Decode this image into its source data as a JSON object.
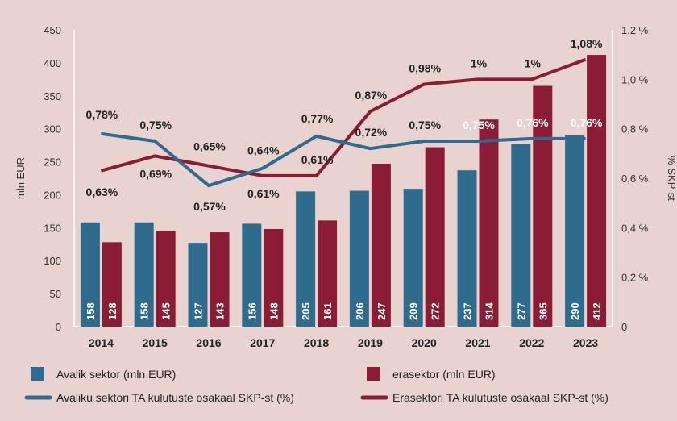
{
  "chart_data": {
    "type": "bar",
    "categories": [
      "2014",
      "2015",
      "2016",
      "2017",
      "2018",
      "2019",
      "2020",
      "2021",
      "2022",
      "2023"
    ],
    "ylabel": "mln EUR",
    "y2label": "% SKP-st",
    "ylim": [
      0,
      450
    ],
    "y2lim": [
      0,
      1.2
    ],
    "y_ticks": [
      "0",
      "50",
      "100",
      "150",
      "200",
      "250",
      "300",
      "350",
      "400",
      "450"
    ],
    "y2_ticks": [
      "0",
      "0,2 %",
      "0,4 %",
      "0,6 %",
      "0,8 %",
      "1,0 %",
      "1,2 %"
    ],
    "colors": {
      "public": "#2e6b8c",
      "private": "#8a1c35"
    },
    "series": [
      {
        "name": "Avalik sektor (mln EUR)",
        "kind": "bar",
        "axis": "left",
        "values": [
          158,
          158,
          127,
          156,
          205,
          206,
          209,
          237,
          277,
          290
        ],
        "labels": [
          "158",
          "158",
          "127",
          "156",
          "205",
          "206",
          "209",
          "237",
          "277",
          "290"
        ]
      },
      {
        "name": "erasektor (mln EUR)",
        "kind": "bar",
        "axis": "left",
        "values": [
          128,
          145,
          143,
          148,
          161,
          247,
          272,
          314,
          365,
          412
        ],
        "labels": [
          "128",
          "145",
          "143",
          "148",
          "161",
          "247",
          "272",
          "314",
          "365",
          "412"
        ]
      },
      {
        "name": "Avaliku sektori TA kulutuste osakaal SKP-st (%)",
        "kind": "line",
        "axis": "right",
        "values": [
          0.78,
          0.75,
          0.57,
          0.64,
          0.77,
          0.72,
          0.75,
          0.75,
          0.76,
          0.76
        ],
        "labels": [
          "0,78%",
          "0,75%",
          "0,57%",
          "0,64%",
          "0,77%",
          "0,72%",
          "0,75%",
          "0,75%",
          "0,76%",
          "0,76%"
        ]
      },
      {
        "name": "Erasektori TA kulutuste osakaal SKP-st (%)",
        "kind": "line",
        "axis": "right",
        "values": [
          0.63,
          0.69,
          0.65,
          0.61,
          0.61,
          0.87,
          0.98,
          1.0,
          1.0,
          1.08
        ],
        "labels": [
          "0,63%",
          "0,69%",
          "0,65%",
          "0,61%",
          "0,61%",
          "0,87%",
          "0,98%",
          "1%",
          "1%",
          "1,08%"
        ]
      }
    ],
    "legend_position": "bottom",
    "grid": false
  }
}
